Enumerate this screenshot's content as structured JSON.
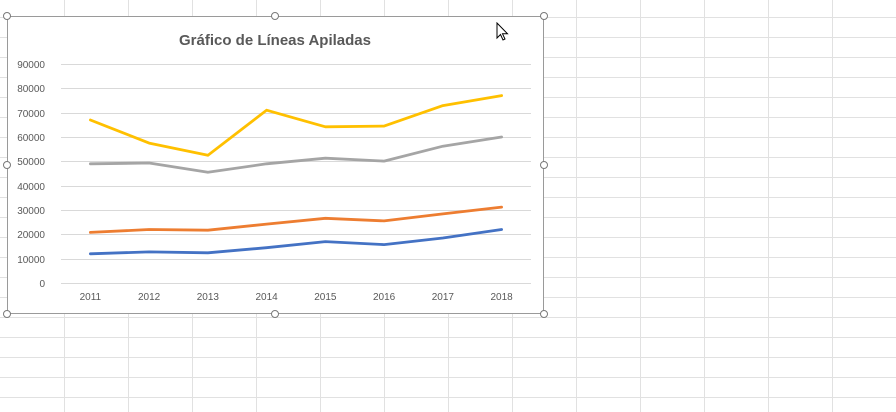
{
  "chart_data": {
    "type": "line",
    "title": "Gráfico de Líneas Apiladas",
    "categories": [
      "2011",
      "2012",
      "2013",
      "2014",
      "2015",
      "2016",
      "2017",
      "2018"
    ],
    "ylim": [
      0,
      90000
    ],
    "yticks": [
      0,
      10000,
      20000,
      30000,
      40000,
      50000,
      60000,
      70000,
      80000,
      90000
    ],
    "grid": true,
    "legend": "none",
    "series": [
      {
        "color": "#4472C4",
        "values": [
          12000,
          12800,
          12400,
          14500,
          17000,
          15800,
          18500,
          22000
        ]
      },
      {
        "color": "#ED7D31",
        "values": [
          20800,
          22000,
          21700,
          24200,
          26600,
          25500,
          28400,
          31200
        ]
      },
      {
        "color": "#A5A5A5",
        "values": [
          49000,
          49300,
          45500,
          49000,
          51300,
          50100,
          56200,
          60000
        ]
      },
      {
        "color": "#FFC000",
        "values": [
          67000,
          57500,
          52500,
          71000,
          64200,
          64500,
          72900,
          77000
        ]
      }
    ]
  },
  "colors": {
    "gridline": "#d9d9d9",
    "axis_text": "#595959",
    "title_text": "#595959",
    "sheet_grid": "#e1e1e1"
  }
}
